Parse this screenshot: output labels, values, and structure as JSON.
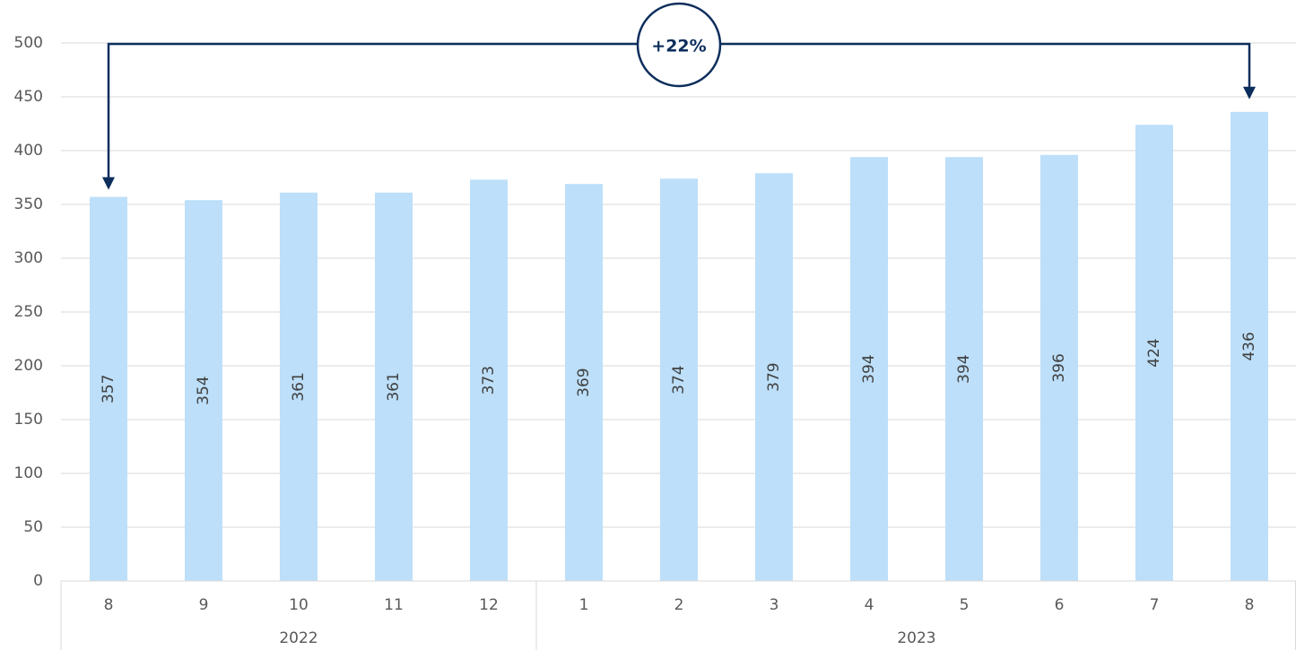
{
  "chart_data": {
    "type": "bar",
    "categories": [
      "8",
      "9",
      "10",
      "11",
      "12",
      "1",
      "2",
      "3",
      "4",
      "5",
      "6",
      "7",
      "8"
    ],
    "groups": [
      {
        "label": "2022",
        "count": 5
      },
      {
        "label": "2023",
        "count": 8
      }
    ],
    "values": [
      357,
      354,
      361,
      361,
      373,
      369,
      374,
      379,
      394,
      394,
      396,
      424,
      436
    ],
    "color": "#bddff9",
    "ylim": [
      0,
      500
    ],
    "yticks": [
      0,
      50,
      100,
      150,
      200,
      250,
      300,
      350,
      400,
      450,
      500
    ],
    "grid": true,
    "annotation": {
      "label": "+22%"
    }
  }
}
